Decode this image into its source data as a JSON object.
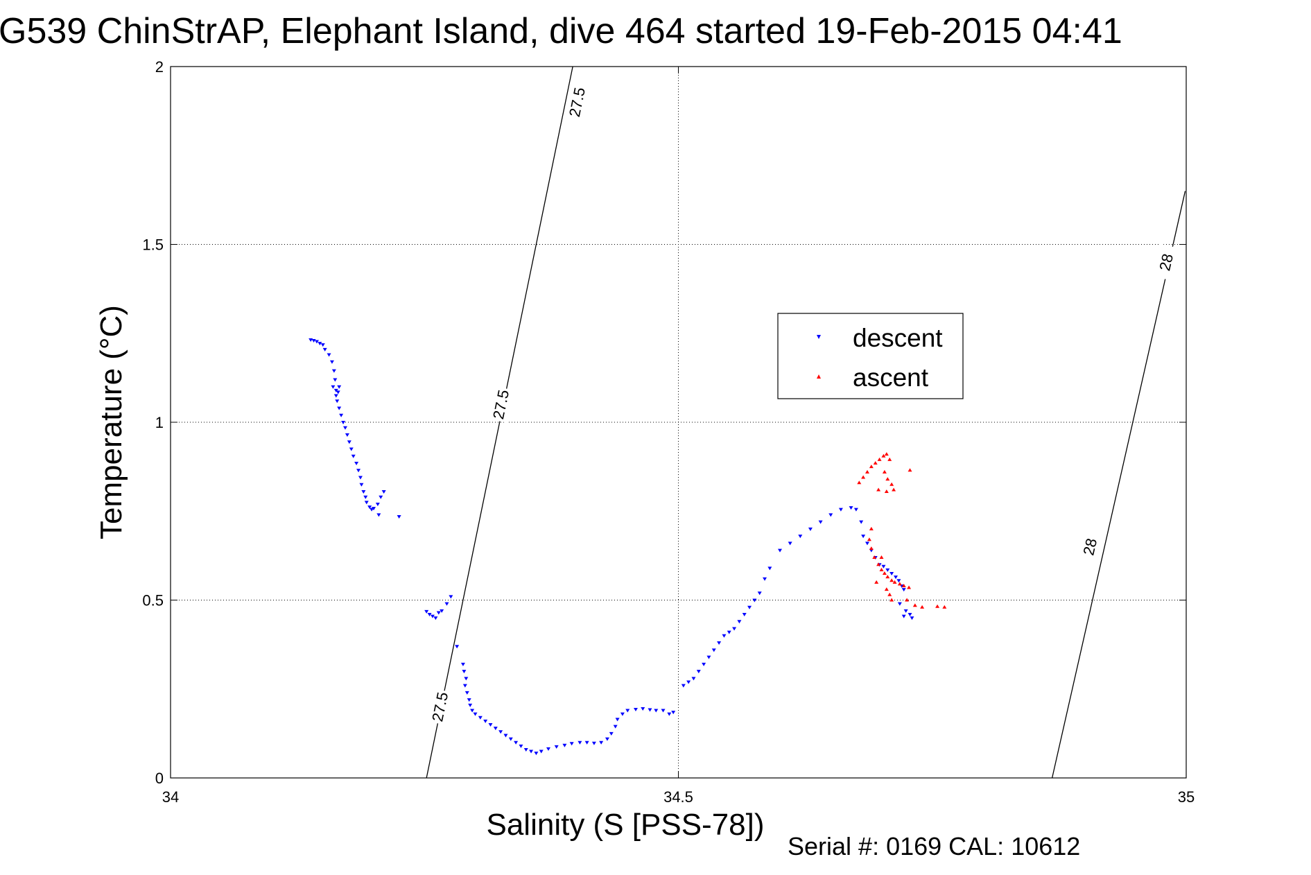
{
  "chart_data": {
    "type": "scatter",
    "title": "G539 ChinStrAP, Elephant Island, dive 464 started 19-Feb-2015 04:41",
    "xlabel": "Salinity (S [PSS-78])",
    "ylabel": "Temperature (°C)",
    "xlim": [
      34,
      35
    ],
    "ylim": [
      0,
      2
    ],
    "xticks": [
      34,
      34.5,
      35
    ],
    "xtick_labels": [
      "34",
      "34.5",
      "35"
    ],
    "yticks": [
      0,
      0.5,
      1,
      1.5,
      2
    ],
    "ytick_labels": [
      "0",
      "0.5",
      "1",
      "1.5",
      "2"
    ],
    "grid": true,
    "legend_position": "inside-right",
    "colors": {
      "descent": "#0000ff",
      "ascent": "#ff0000",
      "contour": "#000000"
    },
    "contours": [
      {
        "label": "27.5",
        "points": [
          [
            34.252,
            0.0
          ],
          [
            34.396,
            2.0
          ]
        ],
        "label_positions": [
          [
            34.265,
            0.2
          ],
          [
            34.325,
            1.05
          ],
          [
            34.4,
            1.9
          ]
        ]
      },
      {
        "label": "28",
        "points": [
          [
            34.868,
            0.0
          ],
          [
            34.999,
            1.65
          ]
        ],
        "label_positions": [
          [
            34.905,
            0.65
          ],
          [
            34.98,
            1.45
          ]
        ]
      }
    ],
    "series": [
      {
        "name": "descent",
        "marker": "triangle-down",
        "values": [
          [
            34.138,
            1.232
          ],
          [
            34.141,
            1.23
          ],
          [
            34.144,
            1.227
          ],
          [
            34.147,
            1.222
          ],
          [
            34.15,
            1.218
          ],
          [
            34.152,
            1.205
          ],
          [
            34.156,
            1.19
          ],
          [
            34.159,
            1.17
          ],
          [
            34.161,
            1.145
          ],
          [
            34.162,
            1.12
          ],
          [
            34.16,
            1.1
          ],
          [
            34.163,
            1.09
          ],
          [
            34.166,
            1.1
          ],
          [
            34.165,
            1.085
          ],
          [
            34.163,
            1.075
          ],
          [
            34.164,
            1.06
          ],
          [
            34.166,
            1.04
          ],
          [
            34.168,
            1.02
          ],
          [
            34.17,
            1.0
          ],
          [
            34.172,
            0.985
          ],
          [
            34.174,
            0.965
          ],
          [
            34.176,
            0.945
          ],
          [
            34.178,
            0.925
          ],
          [
            34.18,
            0.905
          ],
          [
            34.183,
            0.885
          ],
          [
            34.185,
            0.865
          ],
          [
            34.187,
            0.845
          ],
          [
            34.188,
            0.825
          ],
          [
            34.19,
            0.805
          ],
          [
            34.192,
            0.79
          ],
          [
            34.193,
            0.775
          ],
          [
            34.196,
            0.762
          ],
          [
            34.2,
            0.758
          ],
          [
            34.204,
            0.77
          ],
          [
            34.207,
            0.79
          ],
          [
            34.21,
            0.805
          ],
          [
            34.205,
            0.74
          ],
          [
            34.198,
            0.755
          ],
          [
            34.225,
            0.735
          ],
          [
            34.252,
            0.468
          ],
          [
            34.255,
            0.46
          ],
          [
            34.258,
            0.455
          ],
          [
            34.261,
            0.45
          ],
          [
            34.264,
            0.465
          ],
          [
            34.267,
            0.47
          ],
          [
            34.272,
            0.49
          ],
          [
            34.276,
            0.51
          ],
          [
            34.282,
            0.37
          ],
          [
            34.288,
            0.32
          ],
          [
            34.289,
            0.3
          ],
          [
            34.291,
            0.28
          ],
          [
            34.29,
            0.26
          ],
          [
            34.292,
            0.24
          ],
          [
            34.294,
            0.22
          ],
          [
            34.295,
            0.205
          ],
          [
            34.297,
            0.19
          ],
          [
            34.3,
            0.18
          ],
          [
            34.305,
            0.17
          ],
          [
            34.31,
            0.16
          ],
          [
            34.315,
            0.15
          ],
          [
            34.32,
            0.14
          ],
          [
            34.325,
            0.13
          ],
          [
            34.33,
            0.12
          ],
          [
            34.335,
            0.11
          ],
          [
            34.34,
            0.1
          ],
          [
            34.345,
            0.09
          ],
          [
            34.35,
            0.08
          ],
          [
            34.355,
            0.075
          ],
          [
            34.36,
            0.07
          ],
          [
            34.365,
            0.075
          ],
          [
            34.372,
            0.082
          ],
          [
            34.38,
            0.088
          ],
          [
            34.388,
            0.092
          ],
          [
            34.395,
            0.097
          ],
          [
            34.403,
            0.1
          ],
          [
            34.41,
            0.1
          ],
          [
            34.417,
            0.098
          ],
          [
            34.424,
            0.1
          ],
          [
            34.43,
            0.11
          ],
          [
            34.434,
            0.125
          ],
          [
            34.438,
            0.145
          ],
          [
            34.44,
            0.165
          ],
          [
            34.445,
            0.18
          ],
          [
            34.45,
            0.19
          ],
          [
            34.458,
            0.193
          ],
          [
            34.465,
            0.195
          ],
          [
            34.472,
            0.192
          ],
          [
            34.478,
            0.19
          ],
          [
            34.485,
            0.19
          ],
          [
            34.491,
            0.18
          ],
          [
            34.495,
            0.185
          ],
          [
            34.505,
            0.26
          ],
          [
            34.51,
            0.27
          ],
          [
            34.515,
            0.28
          ],
          [
            34.52,
            0.3
          ],
          [
            34.525,
            0.32
          ],
          [
            34.53,
            0.34
          ],
          [
            34.535,
            0.36
          ],
          [
            34.54,
            0.38
          ],
          [
            34.545,
            0.4
          ],
          [
            34.55,
            0.41
          ],
          [
            34.555,
            0.42
          ],
          [
            34.56,
            0.44
          ],
          [
            34.565,
            0.46
          ],
          [
            34.57,
            0.48
          ],
          [
            34.575,
            0.5
          ],
          [
            34.58,
            0.52
          ],
          [
            34.585,
            0.56
          ],
          [
            34.59,
            0.59
          ],
          [
            34.6,
            0.64
          ],
          [
            34.61,
            0.66
          ],
          [
            34.62,
            0.68
          ],
          [
            34.63,
            0.7
          ],
          [
            34.64,
            0.72
          ],
          [
            34.65,
            0.74
          ],
          [
            34.66,
            0.755
          ],
          [
            34.67,
            0.76
          ],
          [
            34.675,
            0.755
          ],
          [
            34.68,
            0.72
          ],
          [
            34.682,
            0.68
          ],
          [
            34.686,
            0.66
          ],
          [
            34.69,
            0.64
          ],
          [
            34.694,
            0.62
          ],
          [
            34.698,
            0.6
          ],
          [
            34.702,
            0.595
          ],
          [
            34.706,
            0.585
          ],
          [
            34.71,
            0.575
          ],
          [
            34.714,
            0.565
          ],
          [
            34.717,
            0.555
          ],
          [
            34.72,
            0.54
          ],
          [
            34.722,
            0.53
          ],
          [
            34.718,
            0.49
          ],
          [
            34.724,
            0.47
          ],
          [
            34.728,
            0.46
          ],
          [
            34.722,
            0.455
          ],
          [
            34.73,
            0.45
          ]
        ]
      },
      {
        "name": "ascent",
        "marker": "triangle-up",
        "values": [
          [
            34.678,
            0.83
          ],
          [
            34.682,
            0.845
          ],
          [
            34.686,
            0.86
          ],
          [
            34.69,
            0.875
          ],
          [
            34.694,
            0.885
          ],
          [
            34.698,
            0.895
          ],
          [
            34.702,
            0.905
          ],
          [
            34.705,
            0.91
          ],
          [
            34.708,
            0.895
          ],
          [
            34.703,
            0.86
          ],
          [
            34.706,
            0.84
          ],
          [
            34.71,
            0.825
          ],
          [
            34.712,
            0.81
          ],
          [
            34.705,
            0.805
          ],
          [
            34.697,
            0.81
          ],
          [
            34.728,
            0.865
          ],
          [
            34.69,
            0.7
          ],
          [
            34.688,
            0.67
          ],
          [
            34.69,
            0.645
          ],
          [
            34.693,
            0.62
          ],
          [
            34.697,
            0.6
          ],
          [
            34.7,
            0.585
          ],
          [
            34.703,
            0.575
          ],
          [
            34.706,
            0.565
          ],
          [
            34.71,
            0.555
          ],
          [
            34.713,
            0.55
          ],
          [
            34.718,
            0.545
          ],
          [
            34.722,
            0.54
          ],
          [
            34.727,
            0.535
          ],
          [
            34.705,
            0.53
          ],
          [
            34.708,
            0.515
          ],
          [
            34.71,
            0.5
          ],
          [
            34.725,
            0.5
          ],
          [
            34.733,
            0.485
          ],
          [
            34.74,
            0.48
          ],
          [
            34.755,
            0.482
          ],
          [
            34.762,
            0.48
          ],
          [
            34.7,
            0.62
          ],
          [
            34.695,
            0.55
          ]
        ]
      }
    ]
  },
  "footer": {
    "serial_text": "Serial #: 0169 CAL: 10612"
  }
}
